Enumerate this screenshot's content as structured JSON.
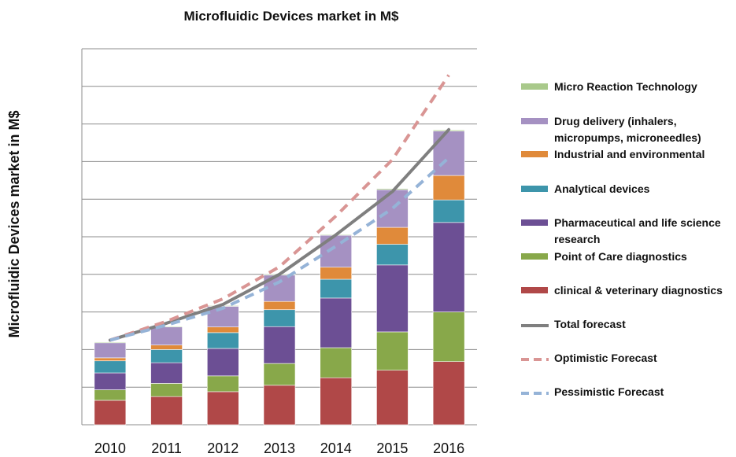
{
  "chart_data": {
    "type": "bar",
    "stacked": true,
    "title": "Microfluidic Devices market in M$",
    "xlabel": "",
    "ylabel": "Microfluidic Devices market in M$",
    "ylim": [
      0,
      10
    ],
    "grid": true,
    "legend_position": "right",
    "categories": [
      "2010",
      "2011",
      "2012",
      "2013",
      "2014",
      "2015",
      "2016"
    ],
    "series": [
      {
        "name": "clinical & veterinary diagnostics",
        "color": "#b04848",
        "values": [
          0.65,
          0.75,
          0.88,
          1.05,
          1.25,
          1.45,
          1.68
        ]
      },
      {
        "name": "Point of Care diagnostics",
        "color": "#88a84a",
        "values": [
          0.28,
          0.35,
          0.42,
          0.58,
          0.8,
          1.02,
          1.32
        ]
      },
      {
        "name": "Pharmaceutical and life science research",
        "color": "#6c4f94",
        "values": [
          0.45,
          0.55,
          0.73,
          0.98,
          1.32,
          1.78,
          2.38
        ]
      },
      {
        "name": "Analytical devices",
        "color": "#3d95ab",
        "values": [
          0.32,
          0.35,
          0.42,
          0.45,
          0.5,
          0.55,
          0.6
        ]
      },
      {
        "name": "Industrial and environmental",
        "color": "#e08a3a",
        "values": [
          0.08,
          0.12,
          0.15,
          0.22,
          0.32,
          0.45,
          0.65
        ]
      },
      {
        "name": "Drug delivery  (inhalers, micropumps, microneedles)",
        "color": "#a591c2",
        "values": [
          0.4,
          0.48,
          0.55,
          0.7,
          0.85,
          1.0,
          1.18
        ]
      },
      {
        "name": "Micro Reaction Technology",
        "color": "#a9c98b",
        "values": [
          0.02,
          0.02,
          0.02,
          0.02,
          0.02,
          0.03,
          0.03
        ]
      }
    ],
    "lines": [
      {
        "name": "Total forecast",
        "color": "#7f7f7f",
        "style": "solid",
        "values": [
          2.25,
          2.7,
          3.2,
          4.0,
          5.05,
          6.2,
          7.85
        ]
      },
      {
        "name": "Optimistic Forecast",
        "color": "#d99594",
        "style": "dashed",
        "values": [
          2.25,
          2.75,
          3.35,
          4.2,
          5.55,
          7.05,
          9.3
        ]
      },
      {
        "name": "Pessimistic Forecast",
        "color": "#95b3d7",
        "style": "dashed",
        "values": [
          2.25,
          2.65,
          3.1,
          3.8,
          4.75,
          5.75,
          7.1
        ]
      }
    ],
    "legend_order": [
      "Micro Reaction Technology",
      "Drug delivery  (inhalers, micropumps, microneedles)",
      "Industrial and environmental",
      "Analytical devices",
      "Pharmaceutical and life science research",
      "Point of Care diagnostics",
      "clinical & veterinary diagnostics",
      "Total forecast",
      "Optimistic Forecast",
      "Pessimistic Forecast"
    ]
  }
}
